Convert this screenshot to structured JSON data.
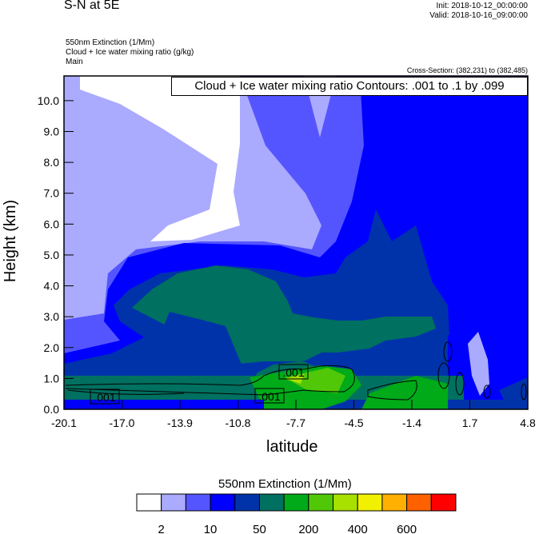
{
  "header": {
    "title": "S-N at 5E",
    "init": "Init: 2018-10-12_00:00:00",
    "valid": "Valid: 2018-10-16_09:00:00",
    "field1": "550nm Extinction   (1/Mm)",
    "field2": "Cloud + Ice water mixing ratio   (g/kg)",
    "field3": "Main",
    "cross_section": "Cross-Section: (382,231) to (382,485)"
  },
  "chart_data": {
    "type": "heatmap",
    "subtype": "filled contour cross-section with line contours",
    "contour_title": "Cloud + Ice water mixing ratio Contours: .001 to .1 by .099",
    "xlabel": "latitude",
    "ylabel": "Height (km)",
    "xlim": [
      -20.1,
      4.8
    ],
    "ylim": [
      0,
      10.8
    ],
    "x_ticks": [
      "-20.1",
      "-17.0",
      "-13.9",
      "-10.8",
      "-7.7",
      "-4.5",
      "-1.4",
      "1.7",
      "4.8"
    ],
    "y_ticks": [
      "0.0",
      "1.0",
      "2.0",
      "3.0",
      "4.0",
      "5.0",
      "6.0",
      "7.0",
      "8.0",
      "9.0",
      "10.0"
    ],
    "contour_labels": [
      ".001",
      ".001",
      ".001"
    ],
    "colorbar": {
      "title": "550nm Extinction  (1/Mm)",
      "colors": [
        "#ffffff",
        "#aaaaff",
        "#5555ff",
        "#0000ff",
        "#0033aa",
        "#007060",
        "#00aa18",
        "#50c808",
        "#a8e000",
        "#f0f000",
        "#ffb000",
        "#ff6000",
        "#ff0000"
      ],
      "labels": [
        "2",
        "10",
        "50",
        "200",
        "400",
        "600"
      ]
    }
  }
}
